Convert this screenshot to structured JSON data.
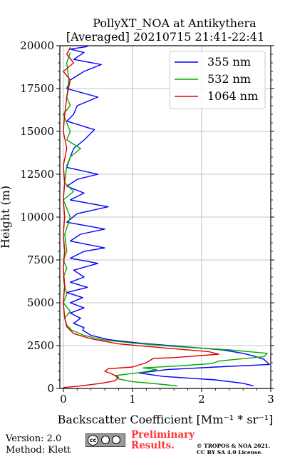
{
  "chart_data": {
    "type": "line",
    "title": [
      "PollyXT_NOA at Antikythera",
      "[Averaged] 20210715 21:41-22:41"
    ],
    "xlabel": "Backscatter Coefficient [Mm⁻¹ * sr⁻¹]",
    "ylabel": "Height (m)",
    "xlim": [
      -0.05,
      3.0
    ],
    "ylim": [
      0,
      20000
    ],
    "xticks": [
      "0",
      "1",
      "2",
      "3"
    ],
    "yticks": [
      "0",
      "2500",
      "5000",
      "7500",
      "10000",
      "12500",
      "15000",
      "17500",
      "20000"
    ],
    "grid": true,
    "legend_position": "top-right",
    "series": [
      {
        "name": "355 nm",
        "color": "#0000ff",
        "points": [
          [
            2.75,
            150
          ],
          [
            2.6,
            300
          ],
          [
            2.2,
            500
          ],
          [
            1.45,
            700
          ],
          [
            1.1,
            900
          ],
          [
            1.5,
            1100
          ],
          [
            2.2,
            1250
          ],
          [
            2.98,
            1400
          ],
          [
            2.9,
            1700
          ],
          [
            2.75,
            1900
          ],
          [
            2.6,
            2050
          ],
          [
            2.3,
            2250
          ],
          [
            1.7,
            2450
          ],
          [
            1.1,
            2650
          ],
          [
            0.65,
            2850
          ],
          [
            0.4,
            3100
          ],
          [
            0.28,
            3400
          ],
          [
            0.3,
            3550
          ],
          [
            0.15,
            3800
          ],
          [
            0.25,
            4100
          ],
          [
            0.1,
            4400
          ],
          [
            0.3,
            4700
          ],
          [
            0.1,
            5000
          ],
          [
            0.28,
            5300
          ],
          [
            0.05,
            5600
          ],
          [
            0.35,
            5900
          ],
          [
            0.1,
            6200
          ],
          [
            0.3,
            6500
          ],
          [
            0.15,
            6900
          ],
          [
            0.5,
            7300
          ],
          [
            0.1,
            7600
          ],
          [
            0.3,
            8000
          ],
          [
            0.6,
            8200
          ],
          [
            0.1,
            8600
          ],
          [
            0.25,
            9000
          ],
          [
            0.6,
            9300
          ],
          [
            0.05,
            9700
          ],
          [
            0.2,
            10200
          ],
          [
            0.65,
            10600
          ],
          [
            0.1,
            11000
          ],
          [
            0.3,
            11400
          ],
          [
            0.05,
            11800
          ],
          [
            0.2,
            12200
          ],
          [
            0.5,
            12500
          ],
          [
            0.05,
            12900
          ],
          [
            0.1,
            13500
          ],
          [
            0.15,
            14000
          ],
          [
            0.3,
            14500
          ],
          [
            0.45,
            15100
          ],
          [
            0.05,
            15600
          ],
          [
            0.15,
            16000
          ],
          [
            0.2,
            16500
          ],
          [
            0.5,
            17000
          ],
          [
            0.05,
            17500
          ],
          [
            0.1,
            18000
          ],
          [
            0.3,
            18500
          ],
          [
            0.55,
            18900
          ],
          [
            0.15,
            19200
          ],
          [
            0.3,
            19600
          ],
          [
            0.1,
            19800
          ],
          [
            0.35,
            19950
          ]
        ]
      },
      {
        "name": "532 nm",
        "color": "#00aa00",
        "points": [
          [
            1.65,
            150
          ],
          [
            1.4,
            250
          ],
          [
            1.0,
            400
          ],
          [
            0.8,
            550
          ],
          [
            0.75,
            750
          ],
          [
            0.95,
            850
          ],
          [
            1.15,
            950
          ],
          [
            1.35,
            1100
          ],
          [
            1.15,
            1200
          ],
          [
            1.6,
            1300
          ],
          [
            2.15,
            1450
          ],
          [
            2.25,
            1600
          ],
          [
            2.9,
            1850
          ],
          [
            2.95,
            2050
          ],
          [
            2.4,
            2250
          ],
          [
            1.6,
            2450
          ],
          [
            1.0,
            2650
          ],
          [
            0.55,
            2850
          ],
          [
            0.3,
            3100
          ],
          [
            0.12,
            3400
          ],
          [
            0.05,
            3700
          ],
          [
            0.02,
            4100
          ],
          [
            0.1,
            4500
          ],
          [
            0.0,
            5000
          ],
          [
            0.05,
            5500
          ],
          [
            0.02,
            6000
          ],
          [
            0.0,
            6500
          ],
          [
            0.05,
            7000
          ],
          [
            0.0,
            7500
          ],
          [
            0.05,
            8000
          ],
          [
            0.02,
            9000
          ],
          [
            0.1,
            10000
          ],
          [
            0.0,
            11000
          ],
          [
            0.15,
            11500
          ],
          [
            0.02,
            12000
          ],
          [
            0.05,
            13000
          ],
          [
            0.1,
            13500
          ],
          [
            0.25,
            14000
          ],
          [
            0.05,
            14500
          ],
          [
            0.1,
            15000
          ],
          [
            0.0,
            16000
          ],
          [
            0.1,
            16500
          ],
          [
            0.05,
            17000
          ],
          [
            0.08,
            18000
          ],
          [
            0.05,
            19000
          ],
          [
            0.1,
            19600
          ]
        ]
      },
      {
        "name": "1064 nm",
        "color": "#dd0000",
        "points": [
          [
            0.0,
            50
          ],
          [
            0.25,
            150
          ],
          [
            0.55,
            300
          ],
          [
            0.75,
            450
          ],
          [
            0.8,
            650
          ],
          [
            0.7,
            850
          ],
          [
            0.6,
            1000
          ],
          [
            0.65,
            1150
          ],
          [
            1.0,
            1250
          ],
          [
            1.2,
            1500
          ],
          [
            1.3,
            1750
          ],
          [
            1.6,
            1800
          ],
          [
            2.25,
            2000
          ],
          [
            2.1,
            2150
          ],
          [
            1.5,
            2350
          ],
          [
            0.8,
            2600
          ],
          [
            0.4,
            2900
          ],
          [
            0.15,
            3200
          ],
          [
            0.05,
            3600
          ],
          [
            0.02,
            4100
          ],
          [
            0.0,
            5000
          ],
          [
            0.02,
            6000
          ],
          [
            0.0,
            7000
          ],
          [
            0.02,
            8000
          ],
          [
            0.0,
            9000
          ],
          [
            0.02,
            10000
          ],
          [
            0.0,
            11000
          ],
          [
            0.02,
            12000
          ],
          [
            0.0,
            13000
          ],
          [
            0.05,
            14000
          ],
          [
            0.0,
            15000
          ],
          [
            0.02,
            16000
          ],
          [
            0.05,
            17000
          ],
          [
            0.1,
            18000
          ],
          [
            0.0,
            18500
          ],
          [
            0.15,
            19000
          ],
          [
            0.05,
            19500
          ],
          [
            0.1,
            19900
          ]
        ]
      }
    ]
  },
  "footer": {
    "version": "Version: 2.0",
    "method": "Method: Klett",
    "license_badge": "cc",
    "preliminary_line1": "Preliminary",
    "preliminary_line2": "Results.",
    "copyright_line1": "© TROPOS & NOA 2021.",
    "copyright_line2": "CC BY SA 4.0 License."
  }
}
